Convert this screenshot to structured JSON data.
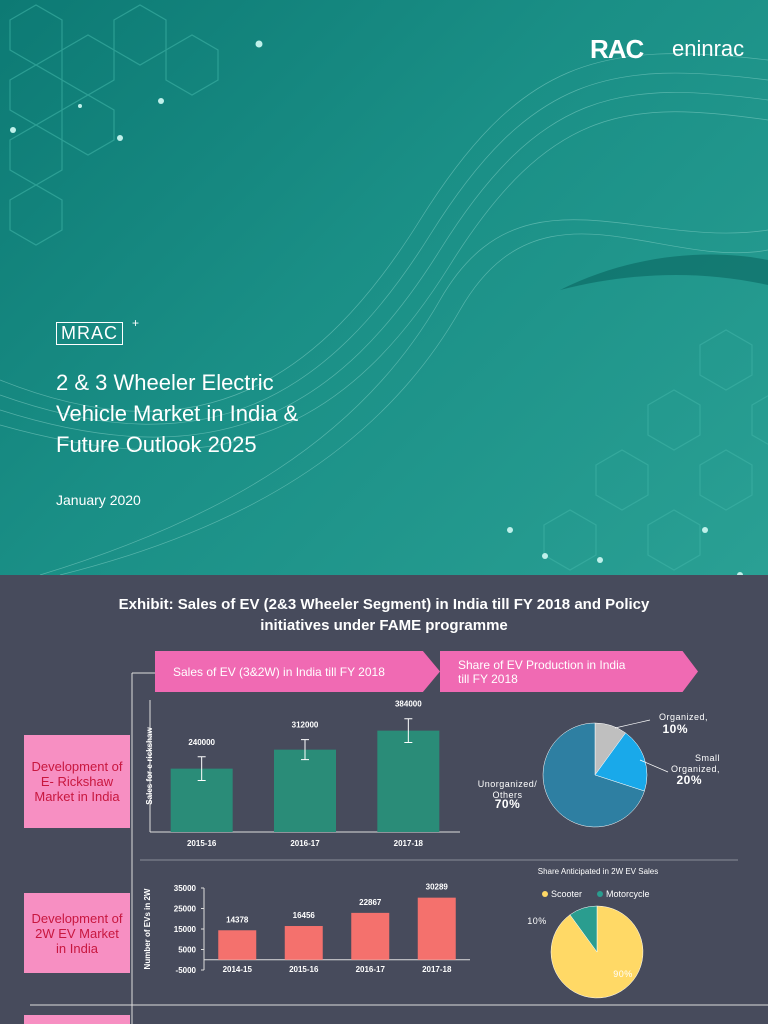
{
  "cover": {
    "logo": {
      "mark": "RAC",
      "name": "eninrac"
    },
    "brand": "MRAC",
    "brand_sup": "+",
    "title_lines": [
      "2 & 3 Wheeler Electric",
      "Vehicle Market in India &",
      "Future Outlook 2025"
    ],
    "date": "January 2020"
  },
  "exhibit": {
    "title_lines": [
      "Exhibit: Sales of EV (2&3 Wheeler Segment) in India till FY 2018 and Policy",
      "initiatives under FAME programme"
    ],
    "banners": [
      "Sales of EV (3&2W) in India till FY 2018",
      "Share of EV Production in India till FY 2018"
    ],
    "rows": [
      "Development of E- Rickshaw Market in India",
      "Development of 2W EV Market in India"
    ]
  },
  "chart_data": [
    {
      "type": "bar",
      "ylabel": "Sales for e-rickshaw",
      "categories": [
        "2015-16",
        "2016-17",
        "2017-18"
      ],
      "values": [
        240000,
        312000,
        384000
      ],
      "errors": [
        45000,
        38000,
        45000
      ],
      "color": "#2a8c78",
      "ylim": [
        0,
        500000
      ]
    },
    {
      "type": "pie",
      "categories": [
        "Organized,",
        "Small Organized,",
        "Unorganized/ Others"
      ],
      "values": [
        10,
        20,
        70
      ],
      "value_labels": [
        "10%",
        "20%",
        "70%"
      ],
      "colors": [
        "#bfbfbf",
        "#19a9ea",
        "#2e7fa2"
      ]
    },
    {
      "type": "bar",
      "ylabel": "Number of EVs in 2W",
      "categories": [
        "2014-15",
        "2015-16",
        "2016-17",
        "2017-18"
      ],
      "values": [
        14378,
        16456,
        22867,
        30289
      ],
      "color": "#f4716d",
      "ylim": [
        -5000,
        35000
      ],
      "yticks": [
        35000,
        25000,
        15000,
        5000,
        -5000
      ]
    },
    {
      "type": "pie",
      "title": "Share Anticipated in 2W EV Sales",
      "categories": [
        "Scooter",
        "Motorcycle"
      ],
      "values": [
        90,
        10
      ],
      "value_labels": [
        "90%",
        "10%"
      ],
      "colors": [
        "#ffd966",
        "#2a9d8f"
      ],
      "legend": "top"
    }
  ]
}
